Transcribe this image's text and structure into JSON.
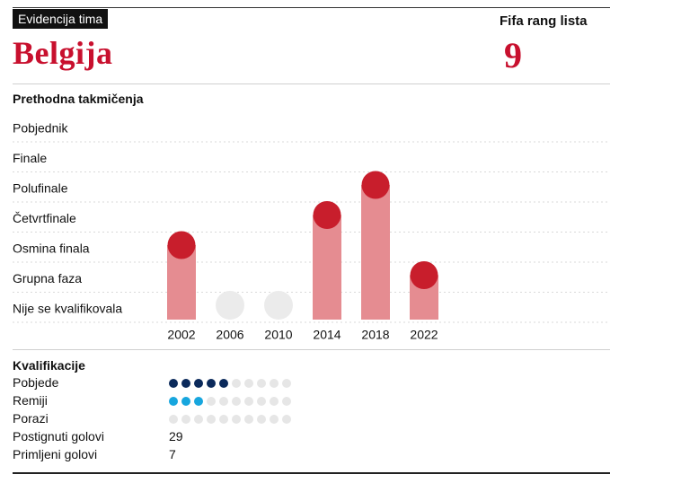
{
  "header": {
    "badge": "Evidencija tima",
    "team": "Belgija",
    "fifa_label": "Fifa rang lista",
    "fifa_rank": "9"
  },
  "colors": {
    "accent": "#c8102e",
    "bar": "#e58c91",
    "marker": "#c81e2c",
    "no_qualify": "#ebebeb",
    "wins": "#0b2a5b",
    "draws": "#17a6de",
    "empty_dot": "#e6e6e6"
  },
  "chart_data": {
    "type": "bar",
    "title": "Prethodna takmičenja",
    "stages": [
      "Pobjednik",
      "Finale",
      "Polufinale",
      "Četvrtfinale",
      "Osmina finala",
      "Grupna faza",
      "Nije se kvalifikovala"
    ],
    "categories": [
      "2002",
      "2006",
      "2010",
      "2014",
      "2018",
      "2022"
    ],
    "results": [
      "Osmina finala",
      "Nije se kvalifikovala",
      "Nije se kvalifikovala",
      "Četvrtfinale",
      "Polufinale",
      "Grupna faza"
    ],
    "grid": true
  },
  "qualification": {
    "title": "Kvalifikacije",
    "dots_total": 10,
    "rows": [
      {
        "label": "Pobjede",
        "type": "dots",
        "count": 5,
        "color": "#0b2a5b"
      },
      {
        "label": "Remiji",
        "type": "dots",
        "count": 3,
        "color": "#17a6de"
      },
      {
        "label": "Porazi",
        "type": "dots",
        "count": 0,
        "color": "#e6e6e6"
      },
      {
        "label": "Postignuti golovi",
        "type": "value",
        "value": "29"
      },
      {
        "label": "Primljeni golovi",
        "type": "value",
        "value": "7"
      }
    ]
  }
}
